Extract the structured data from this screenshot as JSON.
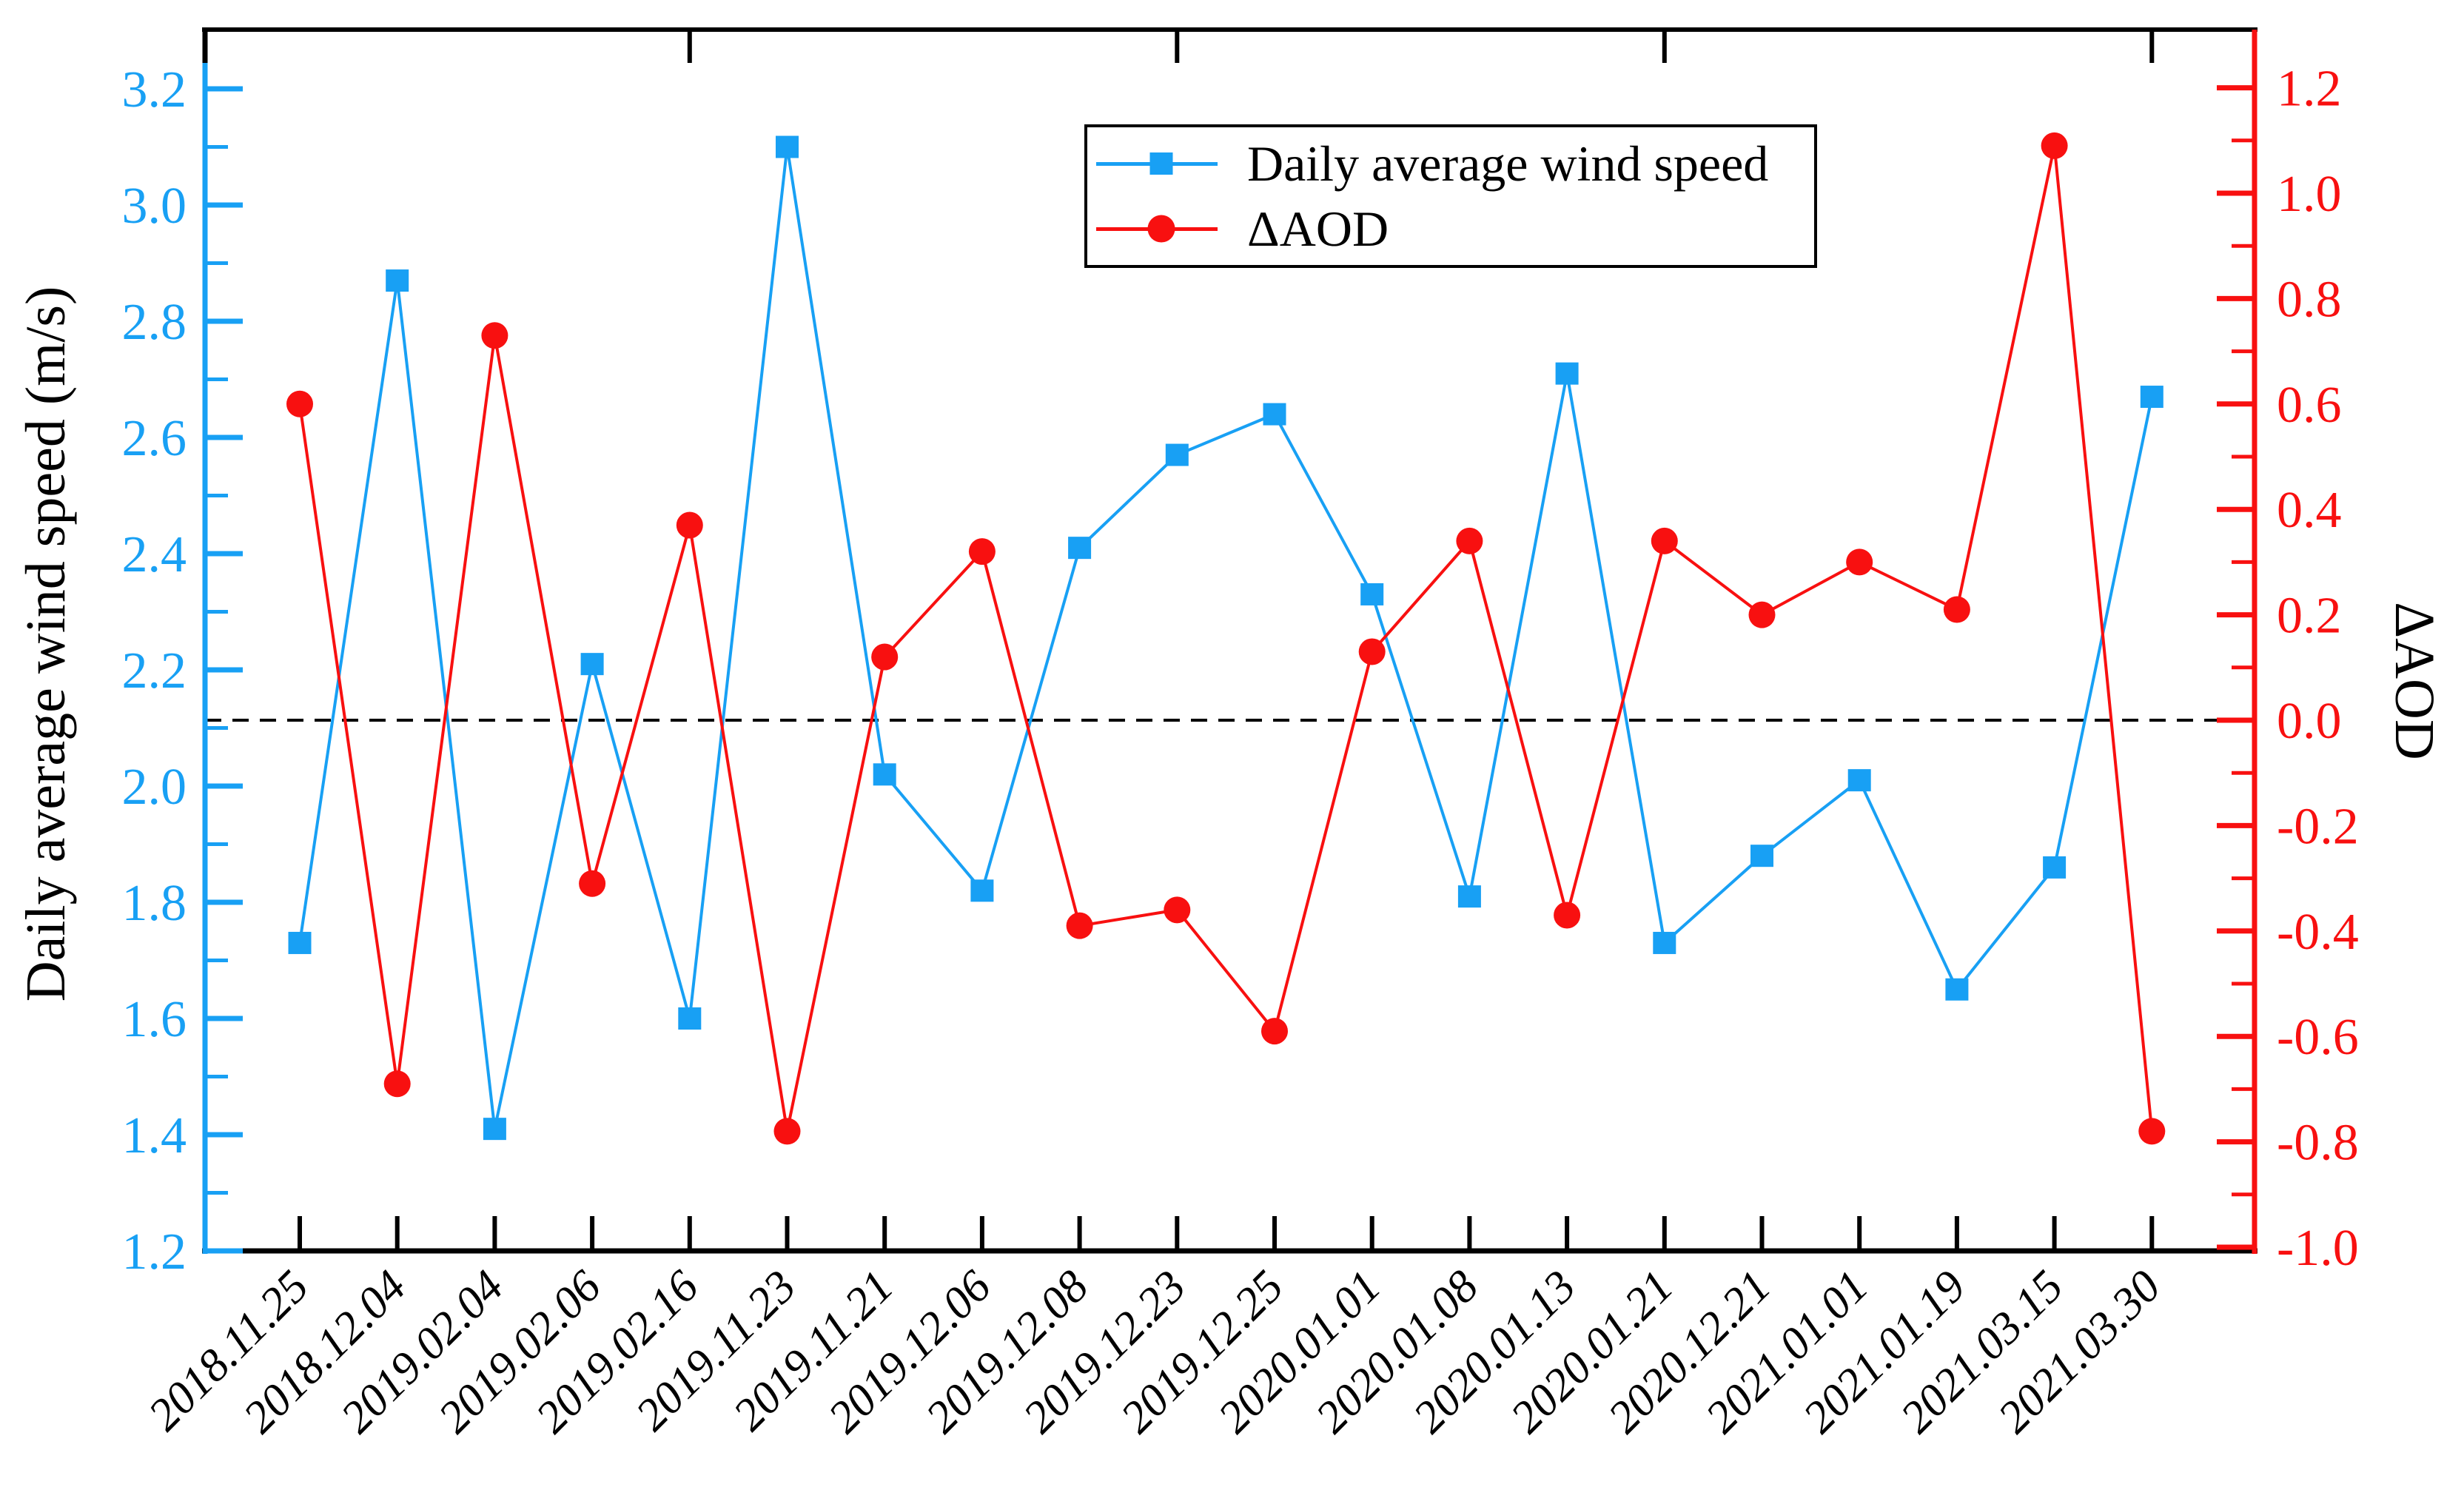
{
  "chart_data": {
    "type": "line",
    "title": "",
    "categories": [
      "2018.11.25",
      "2018.12.04",
      "2019.02.04",
      "2019.02.06",
      "2019.02.16",
      "2019.11.23",
      "2019.11.21",
      "2019.12.06",
      "2019.12.08",
      "2019.12.23",
      "2019.12.25",
      "2020.01.01",
      "2020.01.08",
      "2020.01.13",
      "2020.01.21",
      "2020.12.21",
      "2021.01.01",
      "2021.01.19",
      "2021.03.15",
      "2021.03.30"
    ],
    "series": [
      {
        "name": "Daily average wind speed",
        "axis": "left",
        "color": "#18A0F4",
        "marker": "square",
        "values": [
          1.73,
          2.87,
          1.41,
          2.21,
          1.6,
          3.1,
          2.02,
          1.82,
          2.41,
          2.57,
          2.64,
          2.33,
          1.81,
          2.71,
          1.73,
          1.88,
          2.01,
          1.65,
          1.86,
          2.67
        ]
      },
      {
        "name": "ΔAOD",
        "axis": "right",
        "color": "#F81010",
        "marker": "circle",
        "values": [
          0.6,
          -0.69,
          0.73,
          -0.31,
          0.37,
          -0.78,
          0.12,
          0.32,
          -0.39,
          -0.36,
          -0.59,
          0.13,
          0.34,
          -0.37,
          0.34,
          0.2,
          0.3,
          0.21,
          1.09,
          -0.78
        ]
      }
    ],
    "left_axis": {
      "label": "Daily average wind speed (m/s)",
      "min": 1.2,
      "max": 3.2,
      "major_step": 0.2,
      "minor_step": 0.1,
      "color": "#18A0F4",
      "tick_labels": [
        "1.2",
        "1.4",
        "1.6",
        "1.8",
        "2.0",
        "2.2",
        "2.4",
        "2.6",
        "2.8",
        "3.0",
        "3.2"
      ]
    },
    "right_axis": {
      "label": "ΔAOD",
      "min": -1.0,
      "max": 1.2,
      "major_step": 0.2,
      "minor_step": 0.1,
      "color": "#F81010",
      "tick_labels": [
        "-1.0",
        "-0.8",
        "-0.6",
        "-0.4",
        "-0.2",
        "0.0",
        "0.2",
        "0.4",
        "0.6",
        "0.8",
        "1.0",
        "1.2"
      ]
    },
    "x_axis": {
      "tick_at_every_category": true,
      "top_ticks_at_category_index": [
        4,
        9,
        14,
        19
      ],
      "label_rotation_deg": -45,
      "label_style": "italic"
    },
    "zero_line": {
      "value": 0.0,
      "axis": "right",
      "style": "dashed",
      "color": "#000000"
    },
    "legend": {
      "position": "top-center-right",
      "border_color": "#000000",
      "background": "#ffffff"
    },
    "grid": false,
    "background": "#ffffff"
  }
}
